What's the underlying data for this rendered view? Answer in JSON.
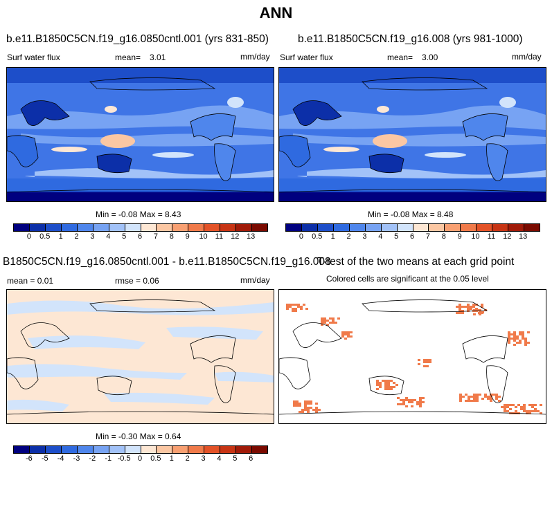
{
  "title": "ANN",
  "panels": [
    {
      "id": "case1",
      "title": "b.e11.B1850C5CN.f19_g16.0850cntl.001 (yrs 831-850)",
      "left_label": "Surf water flux",
      "mean_label": "mean=",
      "mean_value": "3.01",
      "units": "mm/day",
      "minmax": "Min = -0.08 Max = 8.43"
    },
    {
      "id": "case2",
      "title": "b.e11.B1850C5CN.f19_g16.008 (yrs 981-1000)",
      "left_label": "Surf water flux",
      "mean_label": "mean=",
      "mean_value": "3.00",
      "units": "mm/day",
      "minmax": "Min = -0.08 Max = 8.48"
    },
    {
      "id": "diff",
      "title": "B1850C5CN.f19_g16.0850cntl.001 - b.e11.B1850C5CN.f19_g16.008",
      "left_label": "mean =  0.01",
      "rmse_label": "rmse =  0.06",
      "units": "mm/day",
      "minmax": "Min = -0.30 Max = 0.64"
    },
    {
      "id": "ttest",
      "title": "T-test of the two means at each grid point",
      "subtitle": "Colored cells are significant at the 0.05 level"
    }
  ],
  "colorbar_flux": {
    "ticks": [
      "0",
      "0.5",
      "1",
      "2",
      "3",
      "4",
      "5",
      "6",
      "7",
      "8",
      "9",
      "10",
      "11",
      "12",
      "13"
    ],
    "colors": [
      "#00007f",
      "#0c2fa8",
      "#1d4ec9",
      "#2f6ae0",
      "#4f86ec",
      "#77a3f3",
      "#a2c2f8",
      "#d2e4fb",
      "#fde7d4",
      "#fbc7a3",
      "#f8a072",
      "#f07a4a",
      "#e35227",
      "#c73414",
      "#a01a08",
      "#7a0a00"
    ]
  },
  "colorbar_diff": {
    "ticks": [
      "-6",
      "-5",
      "-4",
      "-3",
      "-2",
      "-1",
      "-0.5",
      "0",
      "0.5",
      "1",
      "2",
      "3",
      "4",
      "5",
      "6"
    ],
    "colors": [
      "#00007f",
      "#0c2fa8",
      "#1d4ec9",
      "#2f6ae0",
      "#4f86ec",
      "#77a3f3",
      "#a2c2f8",
      "#d2e4fb",
      "#fde7d4",
      "#fbc7a3",
      "#f8a072",
      "#f07a4a",
      "#e35227",
      "#c73414",
      "#a01a08",
      "#7a0a00"
    ]
  }
}
